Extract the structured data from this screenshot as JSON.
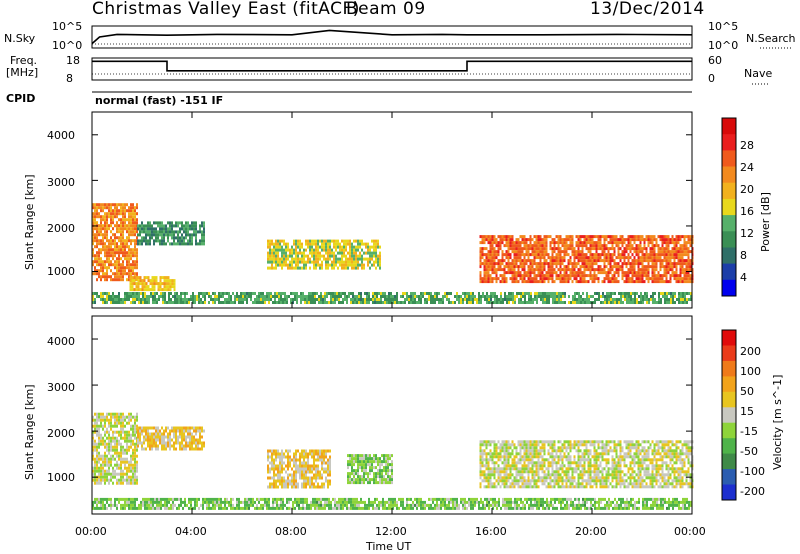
{
  "header": {
    "title": "Christmas Valley East (fitACF)",
    "beam": "Beam 09",
    "date": "13/Dec/2014"
  },
  "strip": {
    "nsky_label": "N.Sky",
    "nsky_ticks": [
      "10^5",
      "10^0"
    ],
    "nsearch_label": "N.Search",
    "nsearch_ticks": [
      "10^5",
      "10^0"
    ],
    "freq_label": "Freq.",
    "freq_unit": "[MHz]",
    "freq_ticks": [
      "18",
      "8"
    ],
    "nave_label": "Nave",
    "nave_ticks": [
      "60",
      "0"
    ],
    "cpid_label": "CPID",
    "cpid_text": "normal (fast) -151 IF"
  },
  "axes": {
    "ylabel": "Slant Range [km]",
    "xlabel": "Time UT",
    "x_ticks": [
      "00:00",
      "04:00",
      "08:00",
      "12:00",
      "16:00",
      "20:00",
      "00:00"
    ],
    "y_ticks": [
      "4000",
      "3000",
      "2000",
      "1000"
    ]
  },
  "power_scale": {
    "label": "Power [dB]",
    "ticks": [
      "28",
      "24",
      "20",
      "16",
      "12",
      "8",
      "4"
    ],
    "colors": [
      "#0000ee",
      "#1c3ea8",
      "#2f6f68",
      "#3a8f55",
      "#56b06a",
      "#e8d81c",
      "#f2b11d",
      "#f38a1e",
      "#f05a1c",
      "#ea1e1e",
      "#d80a0a"
    ]
  },
  "velocity_scale": {
    "label": "Velocity [m s^-1]",
    "ticks": [
      "200",
      "100",
      "50",
      "15",
      "-15",
      "-50",
      "-100",
      "-200"
    ],
    "colors": [
      "#1c2fcf",
      "#2b5db0",
      "#3f8a48",
      "#4fb34a",
      "#8ed43a",
      "#c8c8c0",
      "#e8c520",
      "#f2a31b",
      "#ef7a1a",
      "#ea3b1a",
      "#e00b0b"
    ]
  },
  "chart_data": [
    {
      "type": "line",
      "name": "N.Sky / N.Search",
      "x": [
        0,
        0.3,
        1,
        2,
        3,
        5,
        8,
        9.5,
        12,
        14,
        15,
        18,
        21,
        24
      ],
      "values": [
        0.2,
        0.5,
        0.62,
        0.6,
        0.58,
        0.62,
        0.6,
        0.8,
        0.6,
        0.62,
        0.6,
        0.6,
        0.62,
        0.6
      ],
      "ylabel": "N.Sky"
    },
    {
      "type": "line",
      "name": "Freq.",
      "x": [
        0,
        3,
        3,
        15,
        15,
        24
      ],
      "values": [
        16.5,
        16.5,
        12.2,
        12.2,
        16.5,
        16.5
      ],
      "ylabel": "Freq. [MHz]",
      "ylim": [
        8,
        18
      ]
    },
    {
      "type": "heatmap",
      "title": "Power",
      "xlabel": "Time UT",
      "ylabel": "Slant Range [km]",
      "xlim": [
        0,
        24
      ],
      "ylim": [
        200,
        4500
      ],
      "colorbar_label": "Power [dB]",
      "colorbar_range": [
        0,
        32
      ],
      "regions": [
        {
          "t0": 0.0,
          "t1": 1.8,
          "r0": 850,
          "r1": 2500,
          "value": 22
        },
        {
          "t0": 1.8,
          "t1": 4.5,
          "r0": 1600,
          "r1": 2100,
          "value": 10
        },
        {
          "t0": 1.5,
          "t1": 3.3,
          "r0": 600,
          "r1": 900,
          "value": 18
        },
        {
          "t0": 7.0,
          "t1": 11.5,
          "r0": 1050,
          "r1": 1700,
          "value": 16
        },
        {
          "t0": 15.5,
          "t1": 24.0,
          "r0": 800,
          "r1": 1800,
          "value": 24
        },
        {
          "t0": 0.0,
          "t1": 24.0,
          "r0": 300,
          "r1": 550,
          "value": 12
        }
      ]
    },
    {
      "type": "heatmap",
      "title": "Velocity",
      "xlabel": "Time UT",
      "ylabel": "Slant Range [km]",
      "xlim": [
        0,
        24
      ],
      "ylim": [
        200,
        4500
      ],
      "colorbar_label": "Velocity [m s^-1]",
      "colorbar_range": [
        -250,
        250
      ],
      "regions": [
        {
          "t0": 0.0,
          "t1": 1.8,
          "r0": 900,
          "r1": 2400,
          "value": 0
        },
        {
          "t0": 1.8,
          "t1": 4.5,
          "r0": 1600,
          "r1": 2100,
          "value": 40
        },
        {
          "t0": 7.0,
          "t1": 9.5,
          "r0": 800,
          "r1": 1600,
          "value": 40
        },
        {
          "t0": 10.2,
          "t1": 12.0,
          "r0": 850,
          "r1": 1500,
          "value": -50
        },
        {
          "t0": 15.5,
          "t1": 24.0,
          "r0": 800,
          "r1": 1800,
          "value": 0
        },
        {
          "t0": 0.0,
          "t1": 24.0,
          "r0": 300,
          "r1": 550,
          "value": -60
        }
      ]
    }
  ]
}
